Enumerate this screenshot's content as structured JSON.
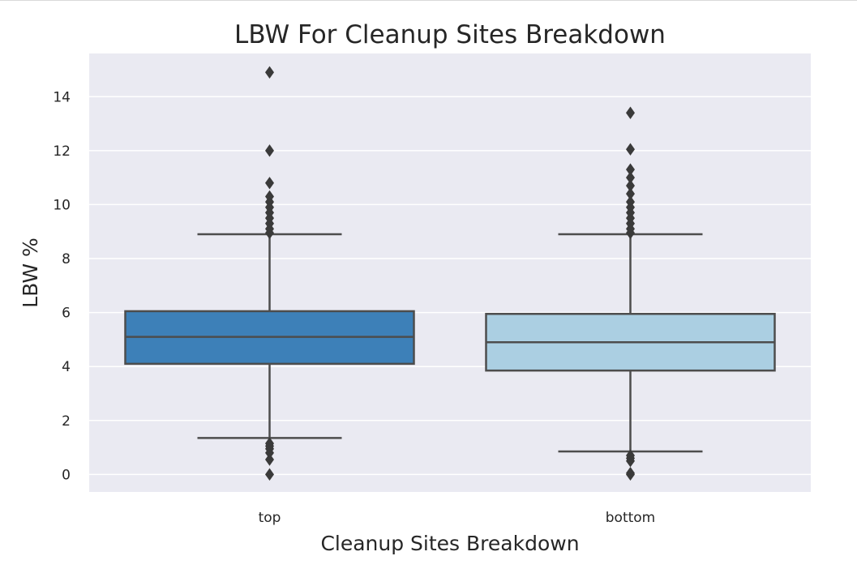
{
  "chart_data": {
    "type": "box",
    "title": "LBW For Cleanup Sites Breakdown",
    "xlabel": "Cleanup Sites Breakdown",
    "ylabel": "LBW %",
    "categories": [
      "top",
      "bottom"
    ],
    "yticks": [
      "0",
      "2",
      "4",
      "6",
      "8",
      "10",
      "12",
      "14"
    ],
    "ylim": [
      -0.65,
      15.6
    ],
    "grid": true,
    "background_color": "#eaeaf2",
    "boxes": [
      {
        "category": "top",
        "color": "#3d80b8",
        "q1": 4.1,
        "median": 5.1,
        "q3": 6.05,
        "whisker_low": 1.35,
        "whisker_high": 8.9,
        "outliers": [
          0.0,
          0.55,
          0.8,
          0.95,
          1.05,
          1.15,
          8.95,
          9.1,
          9.3,
          9.5,
          9.7,
          9.9,
          10.1,
          10.3,
          10.8,
          12.0,
          14.9
        ]
      },
      {
        "category": "bottom",
        "color": "#abcfe2",
        "q1": 3.85,
        "median": 4.9,
        "q3": 5.95,
        "whisker_low": 0.85,
        "whisker_high": 8.9,
        "outliers": [
          0.0,
          0.05,
          0.5,
          0.6,
          0.7,
          8.95,
          9.1,
          9.3,
          9.5,
          9.7,
          9.9,
          10.1,
          10.4,
          10.7,
          11.0,
          11.3,
          12.05,
          13.4
        ]
      }
    ]
  }
}
